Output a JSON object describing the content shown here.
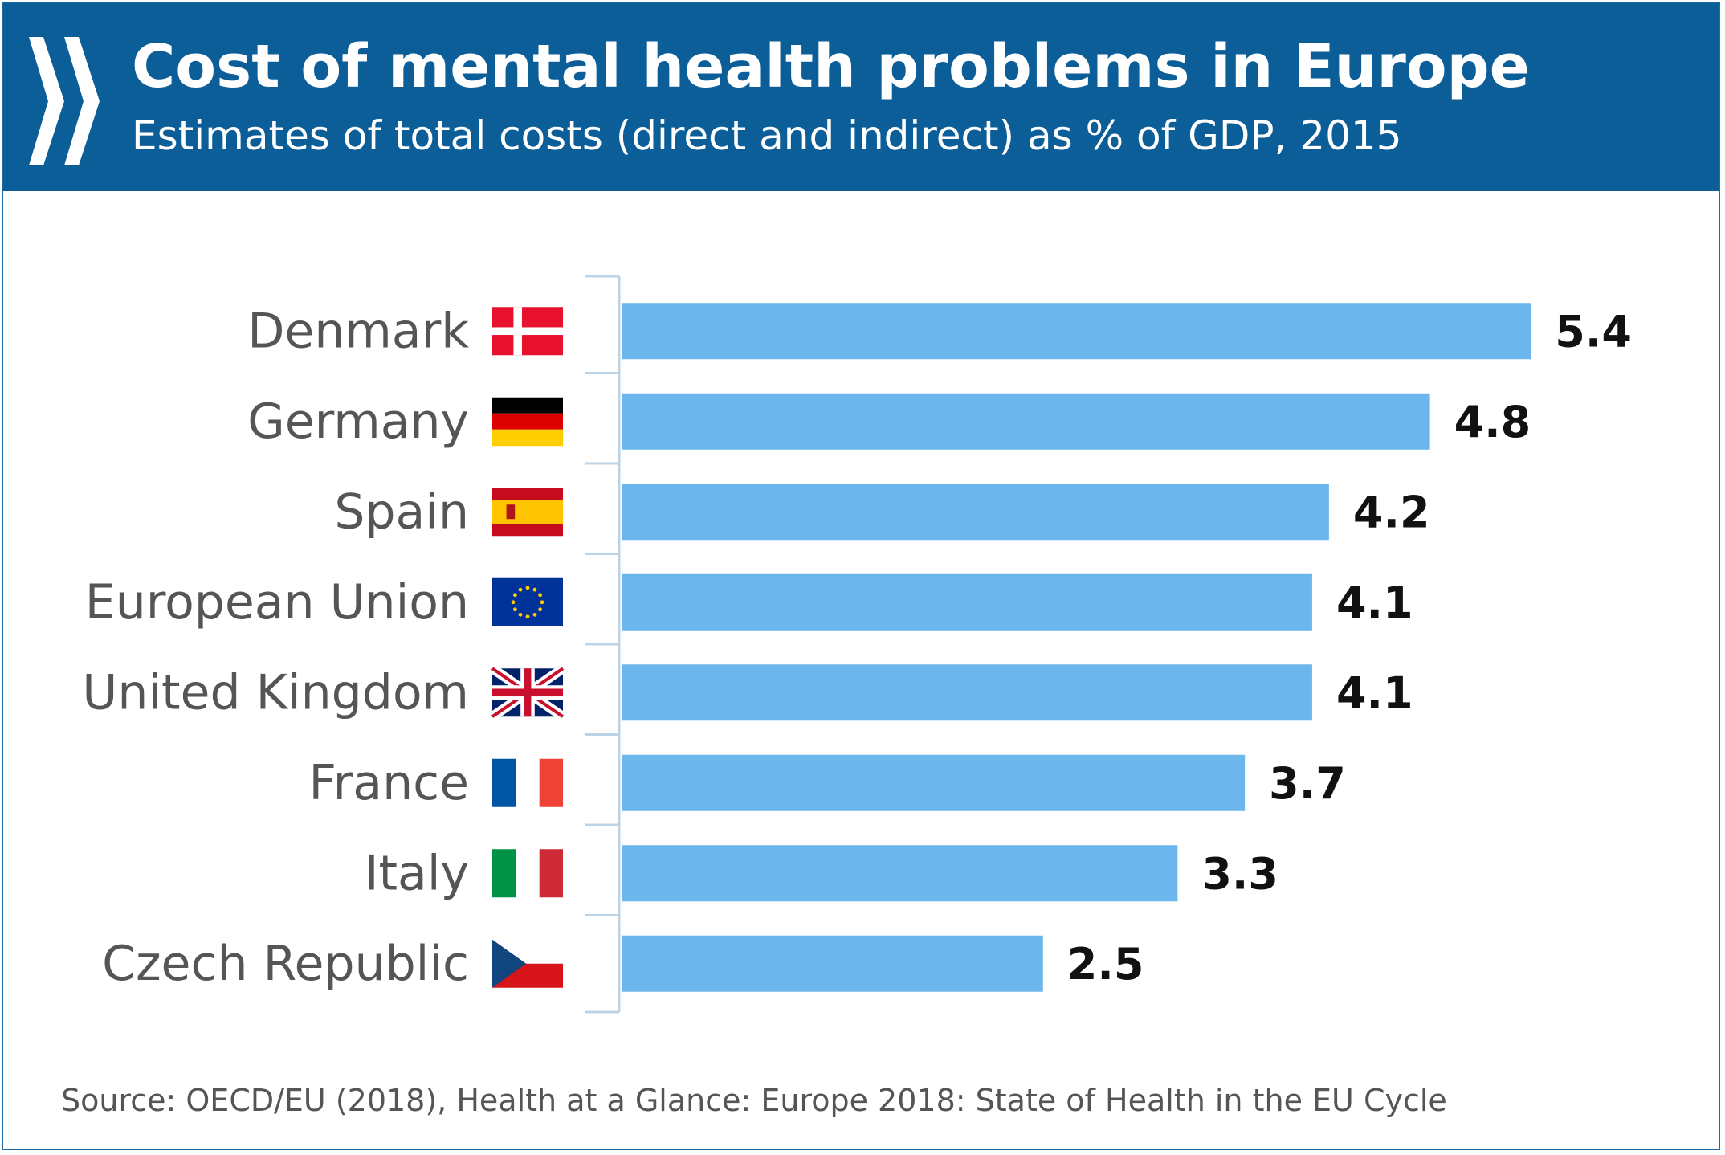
{
  "header": {
    "title": "Cost of mental health problems in Europe",
    "subtitle": "Estimates of total costs (direct and indirect) as % of GDP, 2015",
    "logo_icon": "oecd-chevrons-icon"
  },
  "colors": {
    "header_bg": "#0c5e98",
    "bar": "#6cb6ee",
    "axis": "#bcd3e6"
  },
  "chart_data": {
    "type": "bar",
    "orientation": "horizontal",
    "categories": [
      "Denmark",
      "Germany",
      "Spain",
      "European Union",
      "United Kingdom",
      "France",
      "Italy",
      "Czech Republic"
    ],
    "values": [
      5.4,
      4.8,
      4.2,
      4.1,
      4.1,
      3.7,
      3.3,
      2.5
    ],
    "value_labels": [
      "5.4",
      "4.8",
      "4.2",
      "4.1",
      "4.1",
      "3.7",
      "3.3",
      "2.5"
    ],
    "flags": [
      "denmark-flag-icon",
      "germany-flag-icon",
      "spain-flag-icon",
      "eu-flag-icon",
      "uk-flag-icon",
      "france-flag-icon",
      "italy-flag-icon",
      "czech-flag-icon"
    ],
    "xlim": [
      0,
      6
    ],
    "grid": false,
    "legend": "none"
  },
  "footer": {
    "source": "Source: OECD/EU (2018), Health at a Glance: Europe 2018: State of Health in the EU Cycle"
  }
}
